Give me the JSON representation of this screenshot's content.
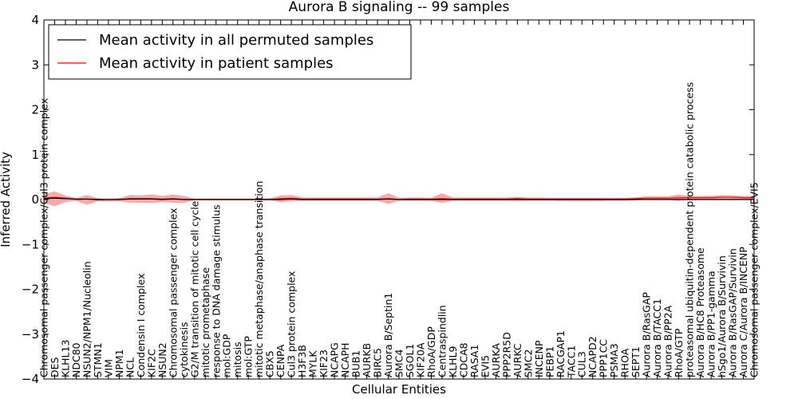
{
  "chart_data": {
    "type": "line",
    "title": "Aurora B signaling -- 99 samples",
    "xlabel": "Cellular Entities",
    "ylabel": "Inferred Activity",
    "ylim": [
      -4,
      4
    ],
    "yticks": [
      -4,
      -3,
      -2,
      -1,
      0,
      1,
      2,
      3,
      4
    ],
    "ytick_labels": [
      "−4",
      "−3",
      "−2",
      "−1",
      "0",
      "1",
      "2",
      "3",
      "4"
    ],
    "grid": false,
    "legend_position": "upper-left",
    "categories": [
      "Chromosomal passenger complex/Cul3 protein complex",
      "DES",
      "KLHL13",
      "NDC80",
      "NSUN2/NPM1/Nucleolin",
      "STMN1",
      "VIM",
      "NPM1",
      "NCL",
      "Condensin I complex",
      "KIF2C",
      "NSUN2",
      "Chromosomal passenger complex",
      "cytokinesis",
      "G2/M transition of mitotic cell cycle",
      "mitotic prometaphase",
      "response to DNA damage stimulus",
      "mol:GDP",
      "mitosis",
      "mol:GTP",
      "mitotic metaphase/anaphase transition",
      "CBX5",
      "CENPA",
      "Cul3 protein complex",
      "H3F3B",
      "MYLK",
      "KIF23",
      "NCAPG",
      "NCAPH",
      "BUB1",
      "AURKB",
      "BIRC5",
      "Aurora B/Septin1",
      "SMC4",
      "SGOL1",
      "KIF20A",
      "RhoA/GDP",
      "Centraspindlin",
      "KLHL9",
      "CDCA8",
      "RASA1",
      "EVI5",
      "AURKA",
      "PPP2R5D",
      "AURKC",
      "SMC2",
      "INCENP",
      "PEBP1",
      "RACGAP1",
      "TACC1",
      "CUL3",
      "NCAPD2",
      "PPP1CC",
      "PSMA3",
      "RHOA",
      "SEPT1",
      "Aurora B/RasGAP",
      "Aurora B/TACC1",
      "Aurora B/PP2A",
      "RhoA/GTP",
      "proteasomal ubiquitin-dependent protein catabolic process",
      "Aurora B/HC8 Proteasome",
      "Aurora B/PP1-gamma",
      "hSgo1/Aurora B/Survivin",
      "Aurora B/RasGAP/Survivin",
      "Aurora C/Aurora B/INCENP",
      "Chromosomal passenger complex/EVI5"
    ],
    "series": [
      {
        "name": "Mean activity in all permuted samples",
        "color": "#000000",
        "values": [
          0.02,
          0.03,
          0.02,
          0.01,
          0.01,
          0.0,
          0.0,
          0.0,
          0.01,
          0.01,
          0.01,
          0.0,
          0.01,
          0.0,
          0.0,
          0.0,
          0.0,
          0.0,
          0.0,
          0.0,
          0.0,
          0.0,
          0.0,
          0.01,
          0.0,
          0.0,
          0.0,
          0.0,
          0.0,
          0.0,
          0.0,
          0.0,
          0.01,
          0.0,
          0.0,
          0.0,
          0.0,
          0.0,
          0.0,
          0.0,
          0.0,
          0.0,
          0.0,
          0.0,
          0.0,
          0.0,
          0.0,
          0.0,
          0.0,
          0.0,
          0.0,
          0.0,
          0.0,
          0.0,
          0.0,
          0.0,
          0.0,
          0.0,
          0.0,
          0.0,
          0.0,
          0.0,
          0.0,
          0.0,
          0.0,
          0.0,
          0.0
        ],
        "band_upper": [
          0.06,
          0.07,
          0.06,
          0.04,
          0.04,
          0.03,
          0.03,
          0.03,
          0.04,
          0.03,
          0.03,
          0.02,
          0.03,
          0.02,
          0.02,
          0.02,
          0.02,
          0.02,
          0.02,
          0.02,
          0.02,
          0.02,
          0.03,
          0.04,
          0.02,
          0.02,
          0.02,
          0.02,
          0.02,
          0.02,
          0.02,
          0.02,
          0.03,
          0.02,
          0.02,
          0.02,
          0.02,
          0.02,
          0.02,
          0.02,
          0.02,
          0.02,
          0.02,
          0.02,
          0.02,
          0.02,
          0.02,
          0.02,
          0.02,
          0.02,
          0.02,
          0.02,
          0.02,
          0.02,
          0.02,
          0.02,
          0.02,
          0.02,
          0.02,
          0.02,
          0.02,
          0.02,
          0.02,
          0.02,
          0.02,
          0.02,
          0.02
        ],
        "band_lower": [
          -0.02,
          -0.01,
          -0.02,
          -0.02,
          -0.02,
          -0.03,
          -0.03,
          -0.03,
          -0.02,
          -0.01,
          -0.01,
          -0.02,
          -0.01,
          -0.02,
          -0.02,
          -0.02,
          -0.02,
          -0.02,
          -0.02,
          -0.02,
          -0.02,
          -0.02,
          -0.03,
          -0.02,
          -0.02,
          -0.02,
          -0.02,
          -0.02,
          -0.02,
          -0.02,
          -0.02,
          -0.02,
          -0.01,
          -0.02,
          -0.02,
          -0.02,
          -0.02,
          -0.02,
          -0.02,
          -0.02,
          -0.02,
          -0.02,
          -0.02,
          -0.02,
          -0.02,
          -0.02,
          -0.02,
          -0.02,
          -0.04,
          -0.05,
          -0.05,
          -0.05,
          -0.04,
          -0.02,
          -0.02,
          -0.02,
          -0.02,
          -0.02,
          -0.02,
          -0.02,
          -0.02,
          -0.02,
          -0.02,
          -0.02,
          -0.02,
          -0.02,
          -0.02
        ]
      },
      {
        "name": "Mean activity in patient samples",
        "color": "#ff0000",
        "band_color": "#f08080",
        "values": [
          0.03,
          0.05,
          0.03,
          0.0,
          0.01,
          -0.01,
          0.0,
          0.0,
          0.02,
          0.02,
          0.02,
          0.01,
          0.02,
          0.0,
          0.0,
          0.0,
          0.0,
          0.0,
          0.0,
          0.0,
          0.0,
          0.0,
          0.02,
          0.03,
          0.01,
          0.01,
          0.01,
          0.01,
          0.01,
          0.01,
          0.01,
          0.01,
          0.02,
          0.0,
          0.01,
          0.01,
          0.01,
          0.02,
          0.01,
          0.01,
          0.01,
          0.01,
          0.01,
          0.01,
          0.02,
          0.01,
          0.01,
          0.01,
          0.01,
          0.01,
          0.01,
          0.01,
          0.01,
          0.01,
          0.01,
          0.02,
          0.03,
          0.03,
          0.03,
          0.04,
          0.04,
          0.04,
          0.04,
          0.05,
          0.05,
          0.04,
          0.04
        ],
        "band_upper": [
          0.12,
          0.18,
          0.09,
          0.03,
          0.1,
          0.03,
          0.0,
          0.03,
          0.1,
          0.09,
          0.11,
          0.08,
          0.11,
          0.08,
          0.02,
          0.02,
          0.02,
          0.02,
          0.02,
          0.02,
          0.02,
          0.03,
          0.09,
          0.1,
          0.05,
          0.05,
          0.05,
          0.05,
          0.05,
          0.05,
          0.05,
          0.05,
          0.14,
          0.04,
          0.05,
          0.05,
          0.04,
          0.14,
          0.05,
          0.05,
          0.05,
          0.05,
          0.05,
          0.05,
          0.06,
          0.05,
          0.05,
          0.04,
          0.04,
          0.04,
          0.04,
          0.04,
          0.04,
          0.04,
          0.04,
          0.05,
          0.07,
          0.07,
          0.07,
          0.11,
          0.08,
          0.08,
          0.08,
          0.1,
          0.09,
          0.08,
          0.08
        ],
        "band_lower": [
          -0.08,
          -0.15,
          -0.06,
          -0.03,
          -0.12,
          -0.04,
          -0.05,
          -0.04,
          -0.07,
          -0.07,
          -0.08,
          -0.06,
          -0.07,
          -0.08,
          -0.02,
          -0.02,
          -0.02,
          -0.02,
          -0.02,
          -0.02,
          -0.02,
          -0.02,
          -0.06,
          -0.04,
          -0.03,
          -0.03,
          -0.03,
          -0.03,
          -0.03,
          -0.03,
          -0.03,
          -0.03,
          -0.1,
          -0.03,
          -0.03,
          -0.03,
          -0.03,
          -0.08,
          -0.03,
          -0.03,
          -0.03,
          -0.03,
          -0.03,
          -0.03,
          -0.03,
          -0.03,
          -0.03,
          -0.03,
          -0.03,
          -0.03,
          -0.03,
          -0.03,
          -0.03,
          -0.03,
          -0.03,
          -0.02,
          -0.01,
          -0.01,
          -0.01,
          -0.03,
          0.0,
          0.0,
          0.0,
          0.0,
          0.0,
          0.0,
          0.0
        ]
      }
    ]
  }
}
